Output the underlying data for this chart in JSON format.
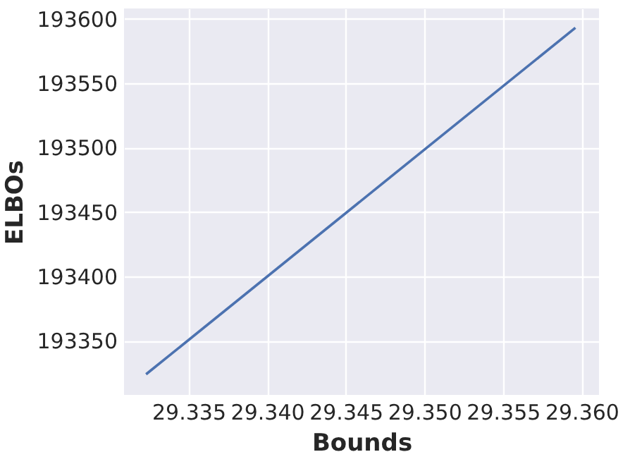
{
  "chart_data": {
    "type": "line",
    "xlabel": "Bounds",
    "ylabel": "ELBOs",
    "x": [
      29.3323,
      29.3596
    ],
    "series": [
      {
        "color": "#4c72b0",
        "values": [
          193324,
          193593
        ]
      }
    ],
    "xlim": [
      29.3309,
      29.3611
    ],
    "ylim": [
      193308,
      193608
    ],
    "xticks": [
      29.335,
      {
        "value": 29.34,
        "label": "29.340"
      },
      29.345,
      {
        "value": 29.35,
        "label": "29.350"
      },
      29.355,
      {
        "value": 29.36,
        "label": "29.360"
      }
    ],
    "yticks": [
      193350,
      193400,
      193450,
      193500,
      193550,
      193600
    ],
    "grid": true
  }
}
